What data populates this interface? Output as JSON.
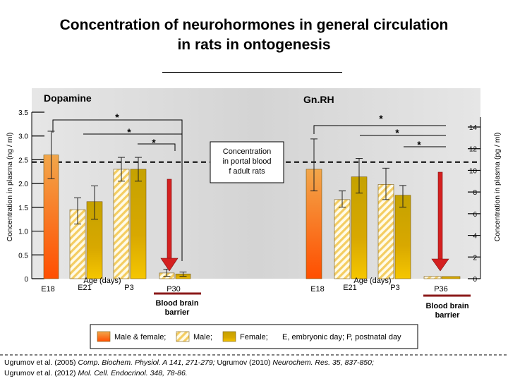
{
  "title_line1": "Concentration  of  neurohormones  in  general  circulation",
  "title_line2": "in  rats  in  ontogenesis",
  "colors": {
    "male_female_top": "#f47f1e",
    "male_female_bottom": "#ff5a00",
    "male_stripe": "#f3c95f",
    "female_top": "#c6a800",
    "female_bottom": "#8a6000",
    "arrow": "#d42020",
    "barrier_line": "#8b1a1a",
    "panel_bg": "#d9d9d9"
  },
  "portal_note": "Concentration in portal blood of adult rats",
  "legend": {
    "male_female": "Male & female;",
    "male": "Male;",
    "female": "Female;",
    "abbrev": "E, embryonic day;  P, postnatal day"
  },
  "references": {
    "line1_a": "Ugrumov et al. (2005) ",
    "line1_b": "Comp. Biochem. Physiol. A 141, 271-279; ",
    "line1_c": "Ugrumov (2010) ",
    "line1_d": "Neurochem. Res. 35, 837-850;",
    "line2_a": "Ugrumov et al. (2012) ",
    "line2_b": "Mol. Cell. Endocrinol. 348, 78-86."
  },
  "chart_data": [
    {
      "type": "bar",
      "title": "Dopamine",
      "ylabel": "Concentration in plasma (ng / ml)",
      "xlabel": "Age (days)",
      "ylim": [
        0,
        3.5
      ],
      "yticks": [
        "0",
        "0.5",
        "1.0",
        "1.5",
        "2.0",
        "2.5",
        "3.0",
        "3.5"
      ],
      "portal_blood_level": 2.45,
      "categories": [
        "E18",
        "E21",
        "P3",
        "P30"
      ],
      "bars": [
        {
          "group": "E18",
          "series": "Male & female",
          "value": 2.6,
          "error_low": 2.1,
          "error_high": 3.1
        },
        {
          "group": "E21",
          "series": "Male",
          "value": 1.45,
          "error_low": 1.15,
          "error_high": 1.7
        },
        {
          "group": "E21",
          "series": "Female",
          "value": 1.62,
          "error_low": 1.25,
          "error_high": 1.95
        },
        {
          "group": "P3",
          "series": "Male",
          "value": 2.3,
          "error_low": 2.05,
          "error_high": 2.55
        },
        {
          "group": "P3",
          "series": "Female",
          "value": 2.3,
          "error_low": 2.05,
          "error_high": 2.55
        },
        {
          "group": "P30",
          "series": "Male",
          "value": 0.12,
          "error_low": 0.05,
          "error_high": 0.2
        },
        {
          "group": "P30",
          "series": "Female",
          "value": 0.1,
          "error_low": 0.05,
          "error_high": 0.14
        }
      ],
      "significance": [
        "*",
        "*",
        "*"
      ],
      "barrier_label": "Blood brain barrier"
    },
    {
      "type": "bar",
      "title": "Gn.RH",
      "ylabel": "Concentration in plasma (pg / ml)",
      "xlabel": "Age (days)",
      "ylim": [
        0,
        14
      ],
      "yticks": [
        "0",
        "2",
        "4",
        "6",
        "8",
        "10",
        "12",
        "14"
      ],
      "portal_blood_level": 11.1,
      "categories": [
        "E18",
        "E21",
        "P3",
        "P36"
      ],
      "bars": [
        {
          "group": "E18",
          "series": "Male & female",
          "value": 10.1,
          "error_low": 8.1,
          "error_high": 12.9
        },
        {
          "group": "E21",
          "series": "Male",
          "value": 7.3,
          "error_low": 6.6,
          "error_high": 8.1
        },
        {
          "group": "E21",
          "series": "Female",
          "value": 9.4,
          "error_low": 7.9,
          "error_high": 11.1
        },
        {
          "group": "P3",
          "series": "Male",
          "value": 8.7,
          "error_low": 7.3,
          "error_high": 10.2
        },
        {
          "group": "P3",
          "series": "Female",
          "value": 7.7,
          "error_low": 6.6,
          "error_high": 8.6
        },
        {
          "group": "P36",
          "series": "Male",
          "value": 0.2,
          "error_low": 0.2,
          "error_high": 0.2
        },
        {
          "group": "P36",
          "series": "Female",
          "value": 0.2,
          "error_low": 0.2,
          "error_high": 0.2
        }
      ],
      "significance": [
        "*",
        "*",
        "*"
      ],
      "barrier_label": "Blood brain barrier"
    }
  ]
}
